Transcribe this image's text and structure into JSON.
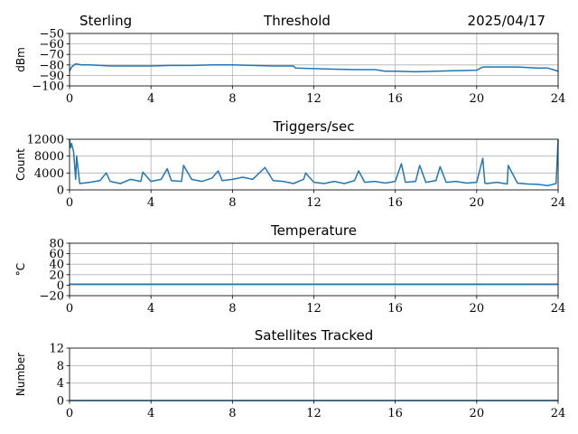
{
  "header": {
    "left": "Sterling",
    "center": "Threshold",
    "right": "2025/04/17"
  },
  "chart_data": [
    {
      "type": "line",
      "title": "",
      "ylabel": "dBm",
      "xlim": [
        0,
        24
      ],
      "ylim": [
        -100,
        -50
      ],
      "xticks": [
        "0",
        "4",
        "8",
        "12",
        "16",
        "20",
        "24"
      ],
      "yticks": [
        "−50",
        "−60",
        "−70",
        "−80",
        "−90",
        "−100"
      ],
      "ytick_values": [
        -50,
        -60,
        -70,
        -80,
        -90,
        -100
      ],
      "grid": true,
      "series": [
        {
          "x": [
            0,
            0.1,
            0.3,
            0.6,
            1,
            2,
            3,
            4,
            5,
            6,
            7,
            8,
            9,
            10,
            11,
            11.1,
            12,
            13,
            14,
            15,
            15.5,
            16,
            17,
            18,
            19,
            20,
            20.3,
            21,
            22,
            23,
            23.5,
            24
          ],
          "y": [
            -86,
            -82,
            -79,
            -80,
            -80,
            -81,
            -81,
            -81,
            -80.5,
            -80.5,
            -80,
            -80,
            -80.5,
            -81,
            -81,
            -83,
            -83.5,
            -84,
            -84.5,
            -84.5,
            -86,
            -86,
            -86.5,
            -86,
            -85.5,
            -85,
            -82,
            -82,
            -82,
            -83,
            -83,
            -86
          ]
        }
      ]
    },
    {
      "type": "line",
      "title": "Triggers/sec",
      "ylabel": "Count",
      "xlim": [
        0,
        24
      ],
      "ylim": [
        0,
        12000
      ],
      "xticks": [
        "0",
        "4",
        "8",
        "12",
        "16",
        "20",
        "24"
      ],
      "yticks": [
        "12000",
        "8000",
        "4000",
        "0"
      ],
      "ytick_values": [
        12000,
        8000,
        4000,
        0
      ],
      "grid": true,
      "series": [
        {
          "x": [
            0,
            0.05,
            0.1,
            0.2,
            0.3,
            0.35,
            0.5,
            1,
            1.5,
            1.8,
            2,
            2.5,
            3,
            3.5,
            3.6,
            4,
            4.5,
            4.8,
            5,
            5.5,
            5.6,
            6,
            6.5,
            7,
            7.3,
            7.5,
            8,
            8.5,
            9,
            9.6,
            10,
            10.5,
            11,
            11.5,
            11.6,
            12,
            12.5,
            13,
            13.5,
            14,
            14.2,
            14.5,
            15,
            15.5,
            16,
            16.3,
            16.5,
            17,
            17.2,
            17.5,
            18,
            18.2,
            18.5,
            19,
            19.5,
            20,
            20.3,
            20.4,
            20.5,
            21,
            21.5,
            21.55,
            22,
            22.5,
            23,
            23.5,
            23.9,
            24
          ],
          "y": [
            12000,
            10000,
            11000,
            9000,
            2500,
            8000,
            1500,
            1800,
            2200,
            4000,
            2000,
            1500,
            2500,
            2000,
            4200,
            2000,
            2500,
            5000,
            2200,
            2000,
            5800,
            2500,
            2000,
            2800,
            4500,
            2200,
            2500,
            3000,
            2500,
            5300,
            2200,
            2000,
            1500,
            2500,
            4000,
            1800,
            1500,
            2000,
            1500,
            2200,
            4500,
            1800,
            2000,
            1600,
            2000,
            6200,
            1800,
            2000,
            5800,
            1800,
            2200,
            5500,
            1800,
            2000,
            1600,
            1800,
            7500,
            1600,
            1500,
            1800,
            1400,
            5800,
            1600,
            1400,
            1300,
            1000,
            1500,
            12000
          ]
        }
      ]
    },
    {
      "type": "line",
      "title": "Temperature",
      "ylabel": "°C",
      "xlim": [
        0,
        24
      ],
      "ylim": [
        -20,
        80
      ],
      "xticks": [
        "0",
        "4",
        "8",
        "12",
        "16",
        "20",
        "24"
      ],
      "yticks": [
        "80",
        "60",
        "40",
        "20",
        "0",
        "−20"
      ],
      "ytick_values": [
        80,
        60,
        40,
        20,
        0,
        -20
      ],
      "grid": true,
      "series": [
        {
          "x": [
            0,
            24
          ],
          "y": [
            2,
            2
          ]
        }
      ]
    },
    {
      "type": "line",
      "title": "Satellites Tracked",
      "ylabel": "Number",
      "xlim": [
        0,
        24
      ],
      "ylim": [
        0,
        12
      ],
      "xticks": [
        "0",
        "4",
        "8",
        "12",
        "16",
        "20",
        "24"
      ],
      "yticks": [
        "12",
        "8",
        "4",
        "0"
      ],
      "ytick_values": [
        12,
        8,
        4,
        0
      ],
      "grid": true,
      "series": [
        {
          "x": [
            0,
            24
          ],
          "y": [
            0,
            0
          ]
        }
      ]
    }
  ]
}
